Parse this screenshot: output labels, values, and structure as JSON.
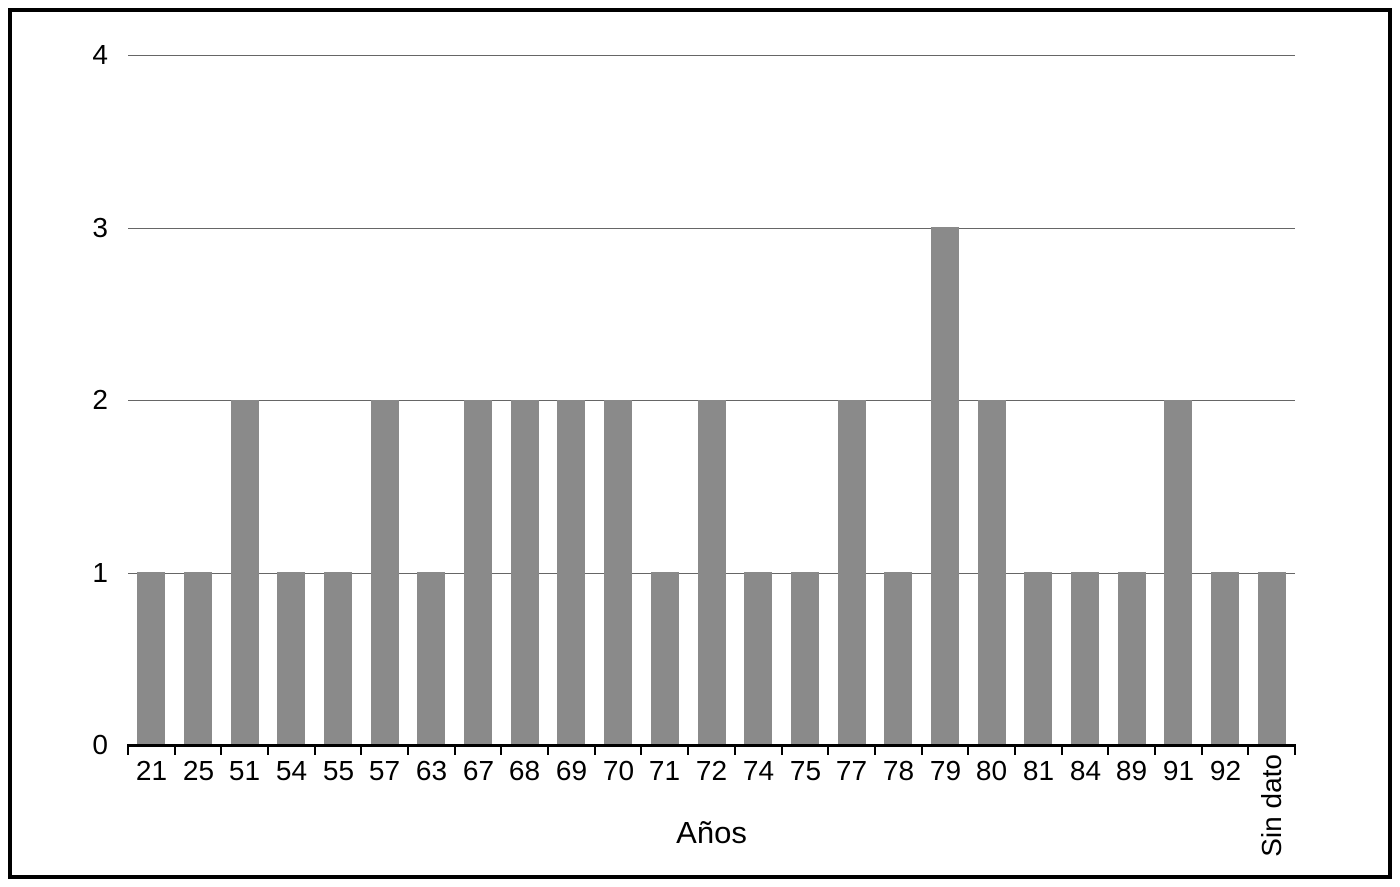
{
  "chart_data": {
    "type": "bar",
    "title": "",
    "categories": [
      "21",
      "25",
      "51",
      "54",
      "55",
      "57",
      "63",
      "67",
      "68",
      "69",
      "70",
      "71",
      "72",
      "74",
      "75",
      "77",
      "78",
      "79",
      "80",
      "81",
      "84",
      "89",
      "91",
      "92",
      "Sin dato"
    ],
    "values": [
      1,
      1,
      2,
      1,
      1,
      2,
      1,
      2,
      2,
      2,
      2,
      1,
      2,
      1,
      1,
      2,
      1,
      3,
      2,
      1,
      1,
      1,
      2,
      1,
      1
    ],
    "xlabel": "Años",
    "ylabel": "",
    "ylim": [
      0,
      4
    ],
    "yticks": [
      0,
      1,
      2,
      3,
      4
    ],
    "grid": true,
    "legend": false,
    "rotated_category": "Sin dato",
    "colors": {
      "bar": "#8a8a8a",
      "gridline": "#666666",
      "axis": "#000000",
      "text": "#000000",
      "frame": "#000000",
      "background": "#ffffff"
    }
  }
}
